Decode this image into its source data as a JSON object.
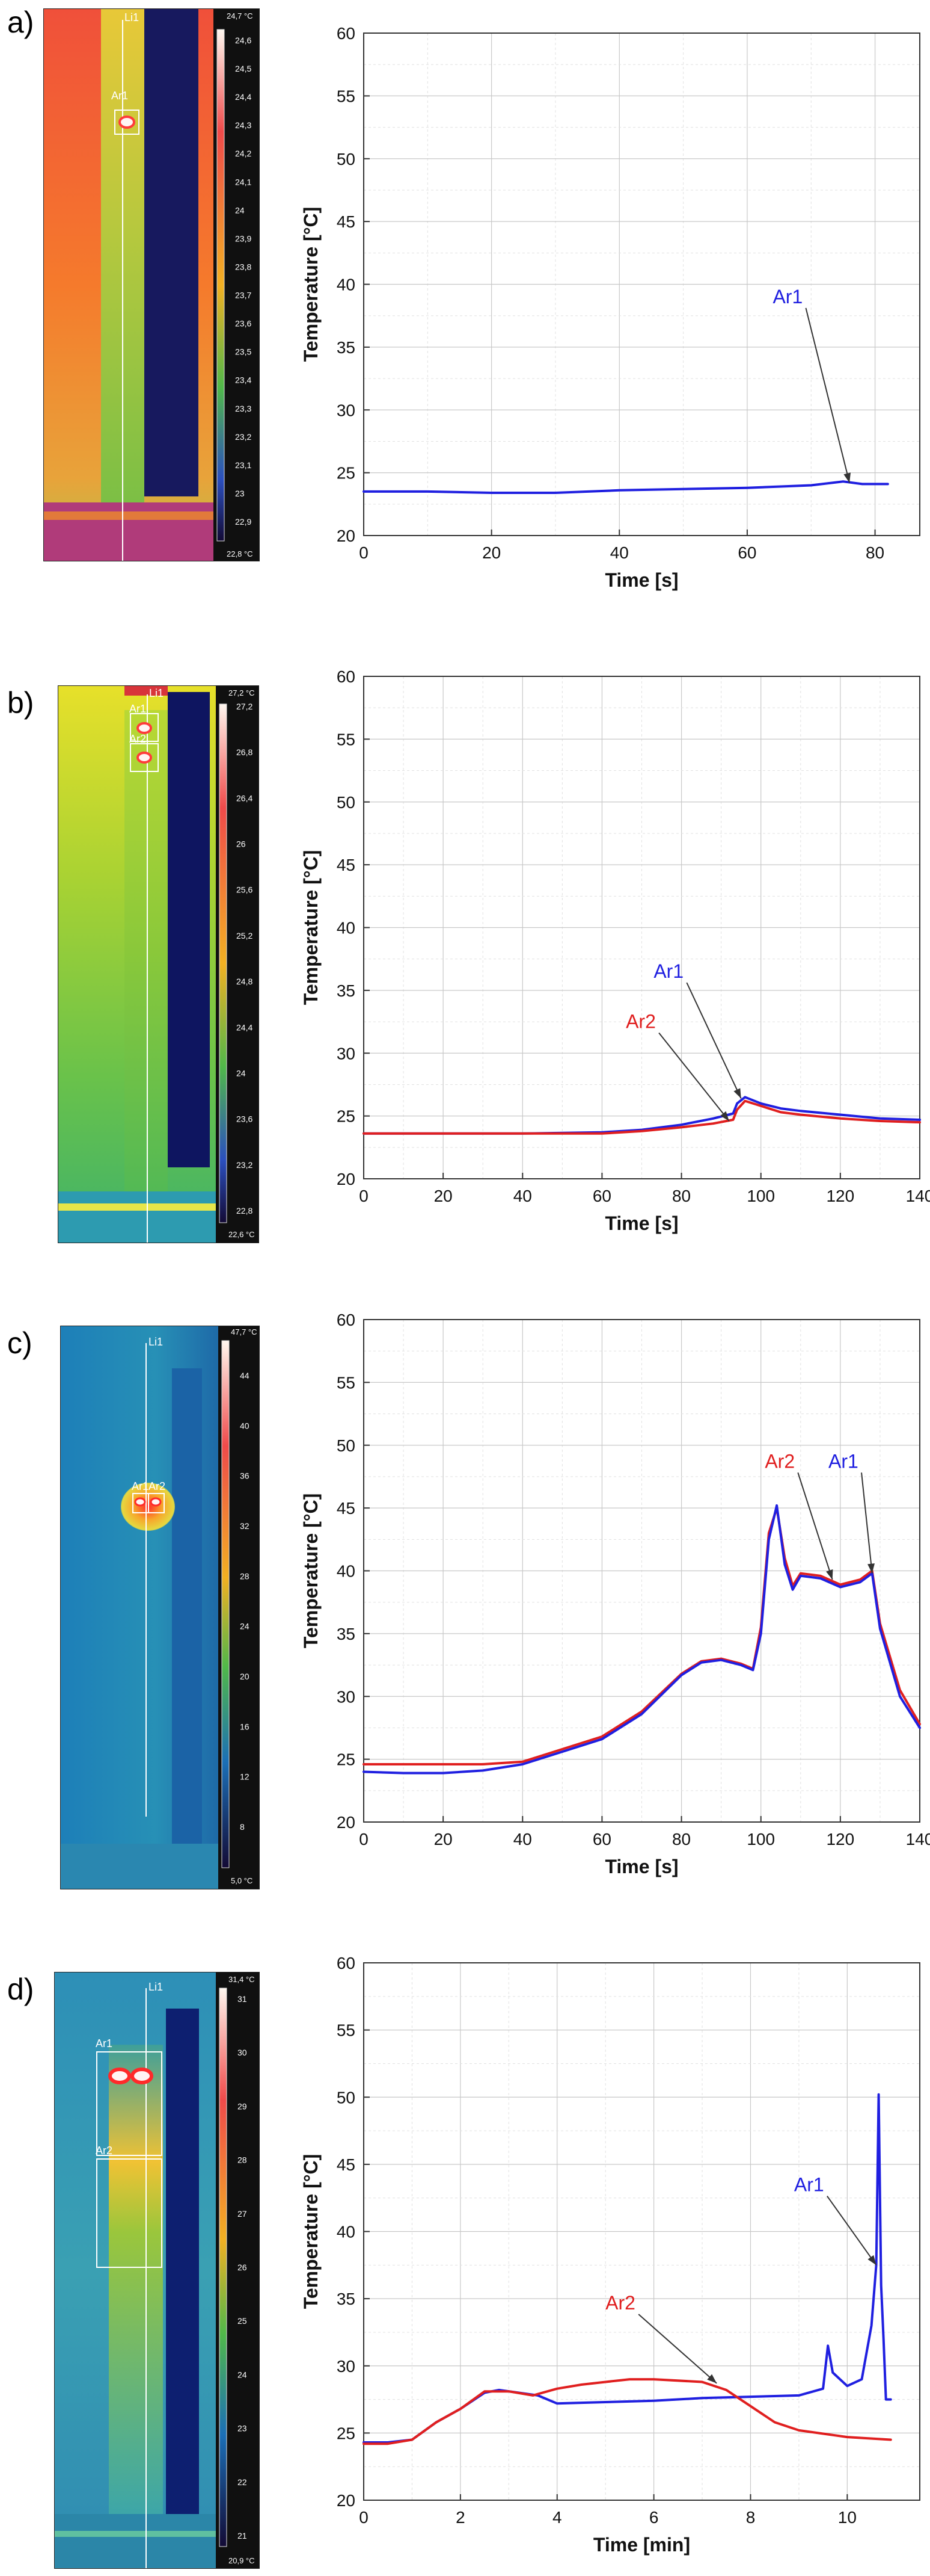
{
  "panels": [
    {
      "id": "a",
      "label": "a)",
      "thermal": {
        "max_text": "24,7 °C",
        "min_text": "22,8 °C",
        "scale_ticks": [
          "24,6",
          "24,5",
          "24,4",
          "24,3",
          "24,2",
          "24,1",
          "24",
          "23,9",
          "23,8",
          "23,7",
          "23,6",
          "23,5",
          "23,4",
          "23,3",
          "23,2",
          "23,1",
          "23",
          "22,9"
        ],
        "line_label": "Li1",
        "area_labels": [
          "Ar1"
        ]
      },
      "chart_data": {
        "type": "line",
        "xlabel": "Time [s]",
        "ylabel": "Temperature [°C]",
        "xlim": [
          0,
          87
        ],
        "ylim": [
          20,
          60
        ],
        "xticks": [
          0,
          20,
          40,
          60,
          80
        ],
        "yticks": [
          20,
          25,
          30,
          35,
          40,
          45,
          50,
          55,
          60
        ],
        "grid": true,
        "series": [
          {
            "name": "Ar1",
            "color": "#1f1fe0",
            "x": [
              0,
              10,
              20,
              30,
              40,
              50,
              60,
              65,
              70,
              75,
              78,
              82
            ],
            "y": [
              23.5,
              23.5,
              23.4,
              23.4,
              23.6,
              23.7,
              23.8,
              23.9,
              24.0,
              24.3,
              24.1,
              24.1
            ]
          }
        ],
        "annotations": [
          {
            "text": "Ar1",
            "color": "#1f1fe0",
            "text_x": 64,
            "text_y": 38.5,
            "target_x": 76,
            "target_y": 24.2
          }
        ]
      }
    },
    {
      "id": "b",
      "label": "b)",
      "thermal": {
        "max_text": "27,2 °C",
        "min_text": "22,6 °C",
        "scale_ticks": [
          "27,2",
          "26,8",
          "26,4",
          "26",
          "25,6",
          "25,2",
          "24,8",
          "24,4",
          "24",
          "23,6",
          "23,2",
          "22,8"
        ],
        "line_label": "Li1",
        "area_labels": [
          "Ar1",
          "Ar2"
        ]
      },
      "chart_data": {
        "type": "line",
        "xlabel": "Time [s]",
        "ylabel": "Temperature [°C]",
        "xlim": [
          0,
          140
        ],
        "ylim": [
          20,
          60
        ],
        "xticks": [
          0,
          20,
          40,
          60,
          80,
          100,
          120,
          140
        ],
        "yticks": [
          20,
          25,
          30,
          35,
          40,
          45,
          50,
          55,
          60
        ],
        "grid": true,
        "series": [
          {
            "name": "Ar1",
            "color": "#1f1fe0",
            "x": [
              0,
              20,
              40,
              60,
              70,
              80,
              88,
              93,
              94,
              96,
              100,
              105,
              110,
              120,
              130,
              140
            ],
            "y": [
              23.6,
              23.6,
              23.6,
              23.7,
              23.9,
              24.3,
              24.8,
              25.2,
              26.0,
              26.5,
              26.0,
              25.6,
              25.4,
              25.1,
              24.8,
              24.7
            ]
          },
          {
            "name": "Ar2",
            "color": "#e01f1f",
            "x": [
              0,
              20,
              40,
              60,
              70,
              80,
              88,
              93,
              94,
              96,
              100,
              105,
              110,
              120,
              130,
              140
            ],
            "y": [
              23.6,
              23.6,
              23.6,
              23.6,
              23.8,
              24.1,
              24.4,
              24.7,
              25.5,
              26.2,
              25.8,
              25.3,
              25.1,
              24.8,
              24.6,
              24.5
            ]
          }
        ],
        "annotations": [
          {
            "text": "Ar1",
            "color": "#1f1fe0",
            "text_x": 73,
            "text_y": 36.0,
            "target_x": 95,
            "target_y": 26.4
          },
          {
            "text": "Ar2",
            "color": "#e01f1f",
            "text_x": 66,
            "text_y": 32.0,
            "target_x": 92,
            "target_y": 24.6
          }
        ]
      }
    },
    {
      "id": "c",
      "label": "c)",
      "thermal": {
        "max_text": "47,7 °C",
        "min_text": "5,0 °C",
        "scale_ticks": [
          "44",
          "40",
          "36",
          "32",
          "28",
          "24",
          "20",
          "16",
          "12",
          "8"
        ],
        "line_label": "Li1",
        "area_labels": [
          "Ar1",
          "Ar2"
        ]
      },
      "chart_data": {
        "type": "line",
        "xlabel": "Time [s]",
        "ylabel": "Temperature [°C]",
        "xlim": [
          0,
          140
        ],
        "ylim": [
          20,
          60
        ],
        "xticks": [
          0,
          20,
          40,
          60,
          80,
          100,
          120,
          140
        ],
        "yticks": [
          20,
          25,
          30,
          35,
          40,
          45,
          50,
          55,
          60
        ],
        "grid": true,
        "series": [
          {
            "name": "Ar2",
            "color": "#e01f1f",
            "x": [
              0,
              10,
              20,
              30,
              40,
              50,
              60,
              70,
              80,
              85,
              90,
              95,
              98,
              100,
              102,
              104,
              106,
              108,
              110,
              115,
              120,
              125,
              128,
              130,
              135,
              140
            ],
            "y": [
              24.6,
              24.6,
              24.6,
              24.6,
              24.8,
              25.8,
              26.8,
              28.8,
              31.8,
              32.8,
              33.0,
              32.6,
              32.2,
              35.5,
              43.0,
              45.0,
              41.0,
              38.8,
              39.8,
              39.6,
              38.9,
              39.3,
              40.0,
              35.8,
              30.5,
              27.8
            ]
          },
          {
            "name": "Ar1",
            "color": "#1f1fe0",
            "x": [
              0,
              10,
              20,
              30,
              40,
              50,
              60,
              70,
              80,
              85,
              90,
              95,
              98,
              100,
              102,
              104,
              106,
              108,
              110,
              115,
              120,
              125,
              128,
              130,
              135,
              140
            ],
            "y": [
              24.0,
              23.9,
              23.9,
              24.1,
              24.6,
              25.6,
              26.6,
              28.6,
              31.7,
              32.7,
              32.9,
              32.5,
              32.1,
              35.0,
              42.5,
              45.2,
              40.5,
              38.5,
              39.6,
              39.4,
              38.7,
              39.1,
              39.8,
              35.4,
              30.0,
              27.5
            ]
          }
        ],
        "annotations": [
          {
            "text": "Ar2",
            "color": "#e01f1f",
            "text_x": 101,
            "text_y": 48.2,
            "target_x": 118,
            "target_y": 39.3
          },
          {
            "text": "Ar1",
            "color": "#1f1fe0",
            "text_x": 117,
            "text_y": 48.2,
            "target_x": 128,
            "target_y": 39.8
          }
        ]
      }
    },
    {
      "id": "d",
      "label": "d)",
      "thermal": {
        "max_text": "31,4 °C",
        "min_text": "20,9 °C",
        "scale_ticks": [
          "31",
          "30",
          "29",
          "28",
          "27",
          "26",
          "25",
          "24",
          "23",
          "22",
          "21"
        ],
        "line_label": "Li1",
        "area_labels": [
          "Ar1",
          "Ar2"
        ]
      },
      "chart_data": {
        "type": "line",
        "xlabel": "Time [min]",
        "ylabel": "Temperature [°C]",
        "xlim": [
          0,
          11.5
        ],
        "ylim": [
          20,
          60
        ],
        "xticks": [
          0,
          2,
          4,
          6,
          8,
          10
        ],
        "yticks": [
          20,
          25,
          30,
          35,
          40,
          45,
          50,
          55,
          60
        ],
        "grid": true,
        "series": [
          {
            "name": "Ar1",
            "color": "#1f1fe0",
            "x": [
              0,
              0.5,
              1.0,
              1.5,
              2.0,
              2.5,
              2.8,
              3.2,
              3.6,
              4.0,
              5.0,
              6.0,
              7.0,
              8.0,
              9.0,
              9.5,
              9.6,
              9.7,
              10.0,
              10.3,
              10.5,
              10.6,
              10.65,
              10.7,
              10.75,
              10.8,
              10.9
            ],
            "y": [
              24.3,
              24.3,
              24.5,
              25.8,
              26.8,
              28.0,
              28.2,
              28.0,
              27.8,
              27.2,
              27.3,
              27.4,
              27.6,
              27.7,
              27.8,
              28.3,
              31.5,
              29.5,
              28.5,
              29.0,
              33.0,
              37.5,
              50.2,
              36.0,
              32.0,
              27.5,
              27.5
            ]
          },
          {
            "name": "Ar2",
            "color": "#e01f1f",
            "x": [
              0,
              0.5,
              1.0,
              1.5,
              2.0,
              2.5,
              3.0,
              3.5,
              4.0,
              4.5,
              5.0,
              5.5,
              6.0,
              7.0,
              7.5,
              8.0,
              8.5,
              9.0,
              10.0,
              10.9
            ],
            "y": [
              24.2,
              24.2,
              24.5,
              25.8,
              26.8,
              28.1,
              28.1,
              27.8,
              28.3,
              28.6,
              28.8,
              29.0,
              29.0,
              28.8,
              28.2,
              27.0,
              25.8,
              25.2,
              24.7,
              24.5
            ]
          }
        ],
        "annotations": [
          {
            "text": "Ar1",
            "color": "#1f1fe0",
            "text_x": 8.9,
            "text_y": 43.0,
            "target_x": 10.6,
            "target_y": 37.5
          },
          {
            "text": "Ar2",
            "color": "#e01f1f",
            "text_x": 5.0,
            "text_y": 34.2,
            "target_x": 7.3,
            "target_y": 28.7
          }
        ]
      }
    }
  ]
}
